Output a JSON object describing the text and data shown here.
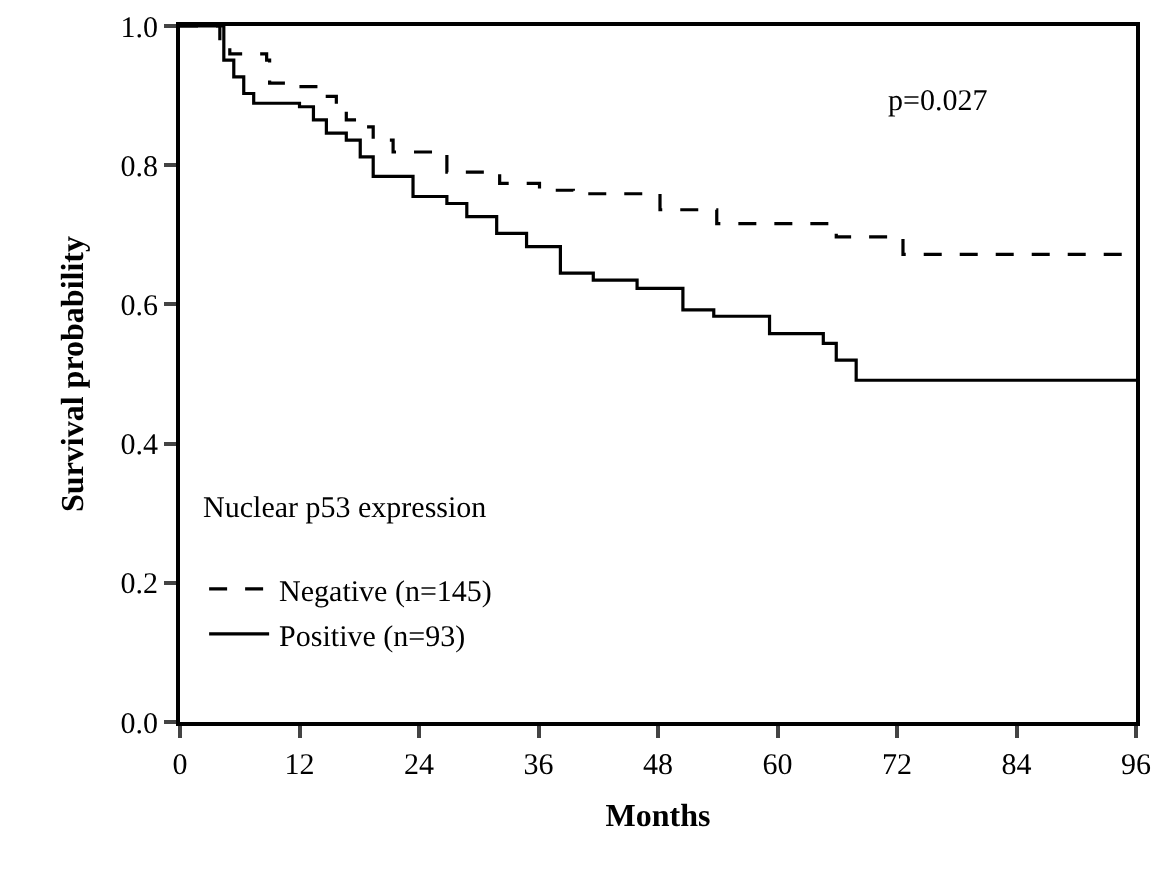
{
  "chart_data": {
    "type": "step",
    "xlabel": "Months",
    "ylabel": "Survival probability",
    "legend_title": "Nuclear p53 expression",
    "xlim": [
      0,
      96
    ],
    "xticks": [
      0,
      12,
      24,
      36,
      48,
      60,
      72,
      84,
      96
    ],
    "ylim": [
      0,
      1
    ],
    "yticks": [
      {
        "value": 0,
        "label": "0.0"
      },
      0.2,
      0.4,
      0.6,
      0.8,
      {
        "value": 1,
        "label": "1.0"
      }
    ],
    "grid": false,
    "legend": "bottom left",
    "annotations": [
      "p=0.027"
    ],
    "series": [
      {
        "name": "Negative (n=145)",
        "color": "#000000",
        "line_style": "dashed",
        "x": [
          0,
          4,
          5,
          8.7,
          9,
          11.4,
          14.1,
          15.7,
          16.7,
          18.1,
          19.4,
          21.4,
          26.8,
          32.1,
          36.1,
          39.5,
          48.2,
          53.9,
          65.9,
          72.6,
          96
        ],
        "values": [
          1,
          0.975,
          0.96,
          0.951,
          0.918,
          0.913,
          0.899,
          0.884,
          0.865,
          0.855,
          0.836,
          0.819,
          0.79,
          0.774,
          0.764,
          0.759,
          0.736,
          0.716,
          0.697,
          0.672,
          0.672
        ]
      },
      {
        "name": "Positive (n=93)",
        "color": "#000000",
        "line_style": "solid",
        "x": [
          0,
          4.4,
          5.4,
          6.4,
          7.4,
          12,
          13.4,
          14.7,
          16.7,
          18.1,
          19.4,
          23.4,
          26.8,
          28.8,
          31.8,
          34.8,
          38.2,
          41.5,
          45.9,
          50.5,
          53.6,
          59.2,
          64.6,
          65.9,
          67.9,
          96
        ],
        "values": [
          1,
          0.951,
          0.927,
          0.903,
          0.889,
          0.884,
          0.865,
          0.846,
          0.836,
          0.812,
          0.784,
          0.755,
          0.745,
          0.726,
          0.702,
          0.683,
          0.645,
          0.635,
          0.623,
          0.592,
          0.583,
          0.558,
          0.544,
          0.52,
          0.491,
          0.491
        ]
      }
    ]
  }
}
